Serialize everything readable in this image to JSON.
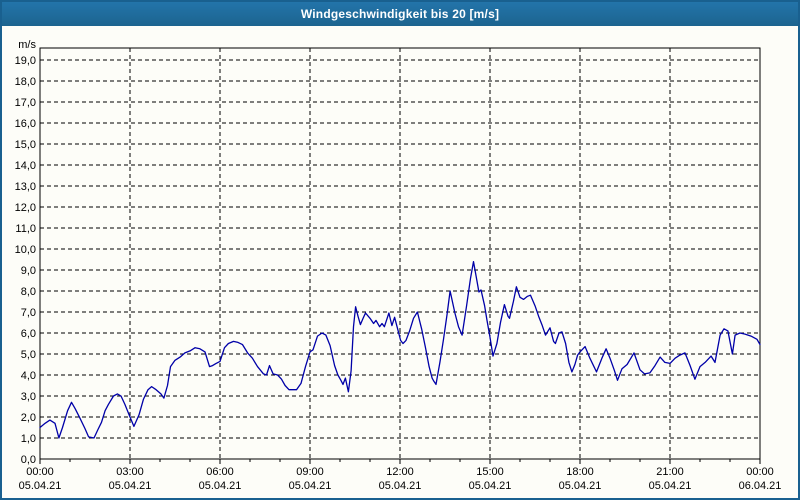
{
  "window": {
    "title": "Windgeschwindigkeit bis 20 [m/s]"
  },
  "colors": {
    "title_bar": "#1d6a9e",
    "frame_border": "#19608f",
    "plot_background": "#fdfdf8",
    "plot_border": "#000000",
    "grid": "#000000",
    "text": "#000000",
    "series_line": "#0000a8"
  },
  "chart_data": {
    "type": "line",
    "title": "Windgeschwindigkeit bis 20 [m/s]",
    "y_unit_label": "m/s",
    "ylim": [
      0,
      19.6
    ],
    "xlim_hours": [
      0,
      24
    ],
    "grid": true,
    "grid_style": "dashed",
    "legend": "none",
    "y_tick_labels": [
      "0,0",
      "1,0",
      "2,0",
      "3,0",
      "4,0",
      "5,0",
      "6,0",
      "7,0",
      "8,0",
      "9,0",
      "10,0",
      "11,0",
      "12,0",
      "13,0",
      "14,0",
      "15,0",
      "16,0",
      "17,0",
      "18,0",
      "19,0"
    ],
    "x_ticks": [
      {
        "hour": 0,
        "time": "00:00",
        "date": "05.04.21"
      },
      {
        "hour": 3,
        "time": "03:00",
        "date": "05.04.21"
      },
      {
        "hour": 6,
        "time": "06:00",
        "date": "05.04.21"
      },
      {
        "hour": 9,
        "time": "09:00",
        "date": "05.04.21"
      },
      {
        "hour": 12,
        "time": "12:00",
        "date": "05.04.21"
      },
      {
        "hour": 15,
        "time": "15:00",
        "date": "05.04.21"
      },
      {
        "hour": 18,
        "time": "18:00",
        "date": "05.04.21"
      },
      {
        "hour": 21,
        "time": "21:00",
        "date": "05.04.21"
      },
      {
        "hour": 24,
        "time": "00:00",
        "date": "06.04.21"
      }
    ],
    "minor_tick_every_hours": 1,
    "major_tick_every_hours": 3,
    "series": [
      {
        "name": "Windgeschwindigkeit [m/s]",
        "points": [
          [
            0.0,
            1.5
          ],
          [
            0.17,
            1.7
          ],
          [
            0.33,
            1.85
          ],
          [
            0.5,
            1.7
          ],
          [
            0.63,
            1.0
          ],
          [
            0.75,
            1.5
          ],
          [
            0.92,
            2.3
          ],
          [
            1.05,
            2.7
          ],
          [
            1.17,
            2.4
          ],
          [
            1.33,
            1.95
          ],
          [
            1.5,
            1.45
          ],
          [
            1.62,
            1.05
          ],
          [
            1.8,
            1.0
          ],
          [
            1.93,
            1.4
          ],
          [
            2.05,
            1.75
          ],
          [
            2.17,
            2.3
          ],
          [
            2.28,
            2.6
          ],
          [
            2.45,
            3.0
          ],
          [
            2.58,
            3.1
          ],
          [
            2.7,
            3.0
          ],
          [
            2.83,
            2.6
          ],
          [
            3.0,
            2.0
          ],
          [
            3.13,
            1.55
          ],
          [
            3.3,
            2.1
          ],
          [
            3.45,
            2.85
          ],
          [
            3.6,
            3.3
          ],
          [
            3.72,
            3.45
          ],
          [
            3.87,
            3.3
          ],
          [
            4.03,
            3.1
          ],
          [
            4.13,
            2.9
          ],
          [
            4.25,
            3.5
          ],
          [
            4.35,
            4.4
          ],
          [
            4.5,
            4.7
          ],
          [
            4.67,
            4.85
          ],
          [
            4.83,
            5.05
          ],
          [
            5.0,
            5.15
          ],
          [
            5.17,
            5.3
          ],
          [
            5.33,
            5.25
          ],
          [
            5.5,
            5.1
          ],
          [
            5.65,
            4.4
          ],
          [
            5.75,
            4.45
          ],
          [
            5.87,
            4.55
          ],
          [
            6.0,
            4.65
          ],
          [
            6.15,
            5.3
          ],
          [
            6.28,
            5.5
          ],
          [
            6.45,
            5.6
          ],
          [
            6.6,
            5.55
          ],
          [
            6.75,
            5.45
          ],
          [
            6.92,
            5.05
          ],
          [
            7.08,
            4.8
          ],
          [
            7.25,
            4.4
          ],
          [
            7.45,
            4.05
          ],
          [
            7.55,
            4.0
          ],
          [
            7.65,
            4.45
          ],
          [
            7.77,
            4.05
          ],
          [
            7.92,
            4.0
          ],
          [
            8.05,
            3.8
          ],
          [
            8.17,
            3.5
          ],
          [
            8.3,
            3.3
          ],
          [
            8.55,
            3.3
          ],
          [
            8.7,
            3.6
          ],
          [
            8.85,
            4.4
          ],
          [
            9.0,
            5.1
          ],
          [
            9.1,
            5.2
          ],
          [
            9.25,
            5.85
          ],
          [
            9.4,
            6.0
          ],
          [
            9.53,
            5.9
          ],
          [
            9.67,
            5.4
          ],
          [
            9.82,
            4.45
          ],
          [
            9.93,
            4.0
          ],
          [
            10.03,
            3.75
          ],
          [
            10.1,
            3.55
          ],
          [
            10.18,
            3.85
          ],
          [
            10.28,
            3.2
          ],
          [
            10.37,
            4.2
          ],
          [
            10.45,
            6.3
          ],
          [
            10.52,
            7.25
          ],
          [
            10.6,
            6.8
          ],
          [
            10.68,
            6.4
          ],
          [
            10.77,
            6.7
          ],
          [
            10.85,
            6.95
          ],
          [
            11.0,
            6.7
          ],
          [
            11.12,
            6.45
          ],
          [
            11.2,
            6.6
          ],
          [
            11.32,
            6.3
          ],
          [
            11.4,
            6.45
          ],
          [
            11.48,
            6.3
          ],
          [
            11.63,
            6.95
          ],
          [
            11.73,
            6.35
          ],
          [
            11.82,
            6.75
          ],
          [
            11.93,
            6.15
          ],
          [
            12.02,
            5.65
          ],
          [
            12.1,
            5.5
          ],
          [
            12.2,
            5.65
          ],
          [
            12.32,
            6.1
          ],
          [
            12.45,
            6.7
          ],
          [
            12.58,
            7.0
          ],
          [
            12.72,
            6.2
          ],
          [
            12.85,
            5.3
          ],
          [
            12.97,
            4.4
          ],
          [
            13.07,
            3.85
          ],
          [
            13.13,
            3.7
          ],
          [
            13.2,
            3.55
          ],
          [
            13.33,
            4.6
          ],
          [
            13.45,
            5.7
          ],
          [
            13.57,
            6.9
          ],
          [
            13.67,
            8.0
          ],
          [
            13.83,
            6.95
          ],
          [
            13.95,
            6.3
          ],
          [
            14.07,
            5.9
          ],
          [
            14.22,
            7.3
          ],
          [
            14.35,
            8.6
          ],
          [
            14.45,
            9.4
          ],
          [
            14.55,
            8.6
          ],
          [
            14.63,
            7.95
          ],
          [
            14.7,
            8.05
          ],
          [
            14.82,
            7.3
          ],
          [
            14.9,
            6.6
          ],
          [
            15.0,
            5.8
          ],
          [
            15.1,
            4.9
          ],
          [
            15.23,
            5.5
          ],
          [
            15.35,
            6.5
          ],
          [
            15.48,
            7.35
          ],
          [
            15.6,
            6.8
          ],
          [
            15.65,
            6.7
          ],
          [
            15.78,
            7.5
          ],
          [
            15.88,
            8.2
          ],
          [
            16.0,
            7.7
          ],
          [
            16.12,
            7.6
          ],
          [
            16.25,
            7.75
          ],
          [
            16.35,
            7.8
          ],
          [
            16.5,
            7.3
          ],
          [
            16.62,
            6.8
          ],
          [
            16.73,
            6.4
          ],
          [
            16.85,
            5.9
          ],
          [
            17.0,
            6.25
          ],
          [
            17.12,
            5.6
          ],
          [
            17.18,
            5.5
          ],
          [
            17.3,
            6.0
          ],
          [
            17.4,
            6.05
          ],
          [
            17.52,
            5.5
          ],
          [
            17.63,
            4.6
          ],
          [
            17.73,
            4.15
          ],
          [
            17.83,
            4.5
          ],
          [
            17.92,
            4.95
          ],
          [
            18.0,
            5.1
          ],
          [
            18.17,
            5.35
          ],
          [
            18.33,
            4.8
          ],
          [
            18.55,
            4.15
          ],
          [
            18.73,
            4.8
          ],
          [
            18.87,
            5.25
          ],
          [
            19.0,
            4.8
          ],
          [
            19.15,
            4.2
          ],
          [
            19.25,
            3.75
          ],
          [
            19.4,
            4.3
          ],
          [
            19.57,
            4.5
          ],
          [
            19.8,
            5.05
          ],
          [
            20.0,
            4.25
          ],
          [
            20.15,
            4.05
          ],
          [
            20.33,
            4.1
          ],
          [
            20.5,
            4.45
          ],
          [
            20.67,
            4.85
          ],
          [
            20.83,
            4.6
          ],
          [
            21.0,
            4.55
          ],
          [
            21.17,
            4.8
          ],
          [
            21.33,
            4.95
          ],
          [
            21.5,
            5.05
          ],
          [
            21.67,
            4.45
          ],
          [
            21.83,
            3.8
          ],
          [
            22.0,
            4.4
          ],
          [
            22.17,
            4.6
          ],
          [
            22.37,
            4.9
          ],
          [
            22.5,
            4.6
          ],
          [
            22.67,
            5.9
          ],
          [
            22.8,
            6.2
          ],
          [
            22.93,
            6.1
          ],
          [
            23.08,
            5.0
          ],
          [
            23.17,
            5.9
          ],
          [
            23.33,
            6.0
          ],
          [
            23.5,
            5.95
          ],
          [
            23.7,
            5.85
          ],
          [
            23.9,
            5.7
          ],
          [
            24.0,
            5.45
          ]
        ]
      }
    ]
  }
}
